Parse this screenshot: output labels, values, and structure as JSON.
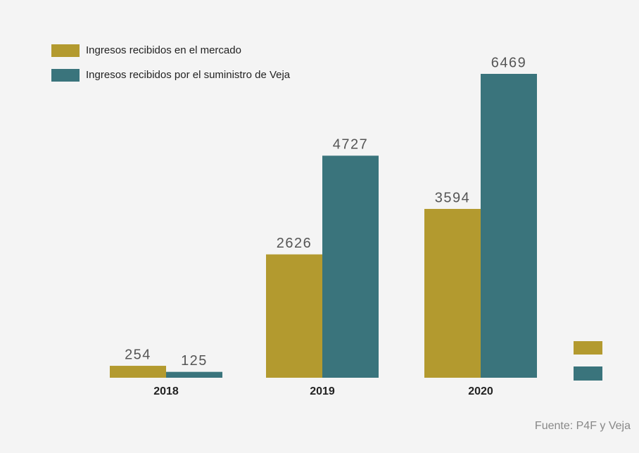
{
  "chart_data": {
    "type": "bar",
    "categories": [
      "2018",
      "2019",
      "2020"
    ],
    "series": [
      {
        "name": "Ingresos recibidos en el mercado",
        "color": "#b39a2f",
        "values": [
          254,
          2626,
          3594
        ]
      },
      {
        "name": "Ingresos recibidos por el suministro de Veja",
        "color": "#3a747c",
        "values": [
          125,
          4727,
          6469
        ]
      }
    ],
    "source": "Fuente: P4F y Veja"
  }
}
